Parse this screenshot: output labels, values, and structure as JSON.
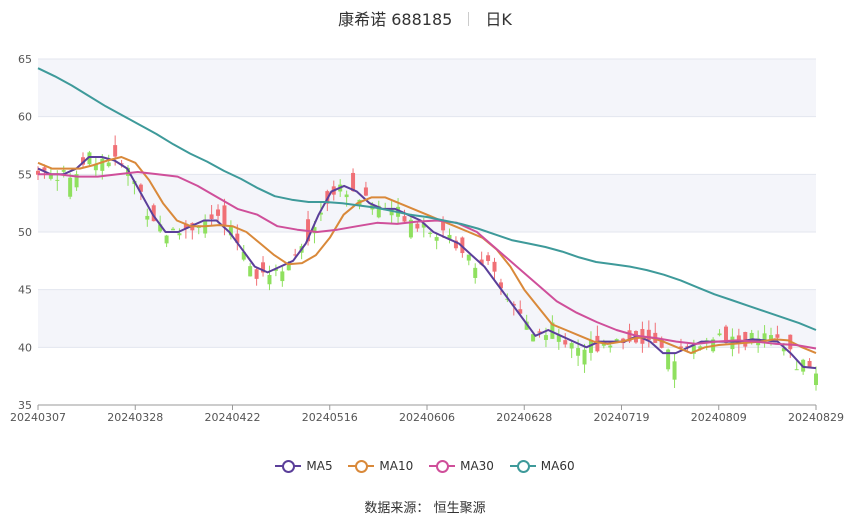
{
  "header": {
    "name": "康希诺 688185",
    "period": "日K"
  },
  "legend": [
    {
      "name": "MA5",
      "color": "#5b3f9a"
    },
    {
      "name": "MA10",
      "color": "#d9893a"
    },
    {
      "name": "MA30",
      "color": "#cf4f9a"
    },
    {
      "name": "MA60",
      "color": "#3e9a9a"
    }
  ],
  "source": {
    "label": "数据来源：",
    "value": "恒生聚源"
  },
  "colors": {
    "up": "#f07076",
    "down": "#8fe05f",
    "band": "#f4f5fa"
  },
  "chart_data": {
    "type": "candlestick",
    "ylim": [
      35,
      65
    ],
    "yticks": [
      35,
      40,
      45,
      50,
      55,
      60,
      65
    ],
    "x_labels": [
      "20240307",
      "20240328",
      "20240422",
      "20240516",
      "20240606",
      "20240628",
      "20240719",
      "20240809",
      "20240829"
    ],
    "ma_series": [
      {
        "name": "MA5",
        "values": [
          55.5,
          55.0,
          55.0,
          55.5,
          56.5,
          56.5,
          56.2,
          55.5,
          53.5,
          51.5,
          50.0,
          50.0,
          50.5,
          51.0,
          51.0,
          50.0,
          48.5,
          47.0,
          46.5,
          47.0,
          47.5,
          49.0,
          51.5,
          53.5,
          54.0,
          53.5,
          52.5,
          52.0,
          52.0,
          51.5,
          51.0,
          50.0,
          49.5,
          49.0,
          48.0,
          47.0,
          45.5,
          44.0,
          42.5,
          41.0,
          41.5,
          41.0,
          40.5,
          40.0,
          40.5,
          40.5,
          40.5,
          41.0,
          40.5,
          39.5,
          39.5,
          40.0,
          40.5,
          40.5,
          40.5,
          40.5,
          40.7,
          40.6,
          40.5,
          39.5,
          38.3,
          38.2
        ]
      },
      {
        "name": "MA10",
        "values": [
          56.0,
          55.5,
          55.5,
          55.5,
          55.8,
          56.2,
          56.5,
          56.0,
          54.5,
          52.5,
          51.0,
          50.5,
          50.5,
          50.6,
          50.5,
          50.0,
          49.0,
          48.0,
          47.2,
          47.3,
          48.0,
          49.5,
          51.5,
          52.5,
          53.0,
          53.0,
          52.5,
          52.0,
          51.5,
          51.0,
          50.5,
          50.0,
          49.5,
          48.5,
          47.0,
          45.0,
          43.5,
          42.0,
          41.5,
          41.0,
          40.5,
          40.3,
          40.5,
          40.8,
          40.9,
          40.5,
          40.0,
          39.5,
          40.0,
          40.2,
          40.3,
          40.4,
          40.5,
          40.7,
          40.6,
          40.0,
          39.5
        ]
      },
      {
        "name": "MA30",
        "values": [
          55.0,
          55.0,
          54.8,
          54.8,
          55.0,
          55.2,
          55.0,
          54.8,
          54.0,
          53.0,
          52.0,
          51.5,
          50.5,
          50.2,
          50.0,
          50.2,
          50.5,
          50.8,
          50.7,
          50.9,
          51.0,
          50.8,
          50.0,
          48.5,
          47.0,
          45.5,
          44.0,
          43.0,
          42.2,
          41.5,
          41.0,
          40.8,
          40.5,
          40.3,
          40.5,
          40.6,
          40.5,
          40.3,
          40.2,
          39.9
        ]
      },
      {
        "name": "MA60",
        "values": [
          64.2,
          63.5,
          62.7,
          61.8,
          60.9,
          60.1,
          59.3,
          58.5,
          57.6,
          56.8,
          56.1,
          55.3,
          54.6,
          53.8,
          53.1,
          52.8,
          52.6,
          52.6,
          52.5,
          52.3,
          52.1,
          51.8,
          51.5,
          51.3,
          51.0,
          50.7,
          50.3,
          49.8,
          49.3,
          49.0,
          48.7,
          48.3,
          47.8,
          47.4,
          47.2,
          47.0,
          46.7,
          46.3,
          45.8,
          45.2,
          44.6,
          44.1,
          43.6,
          43.1,
          42.6,
          42.1,
          41.5
        ]
      }
    ],
    "candles_note": "daily OHLC candles, ~122 sessions"
  }
}
